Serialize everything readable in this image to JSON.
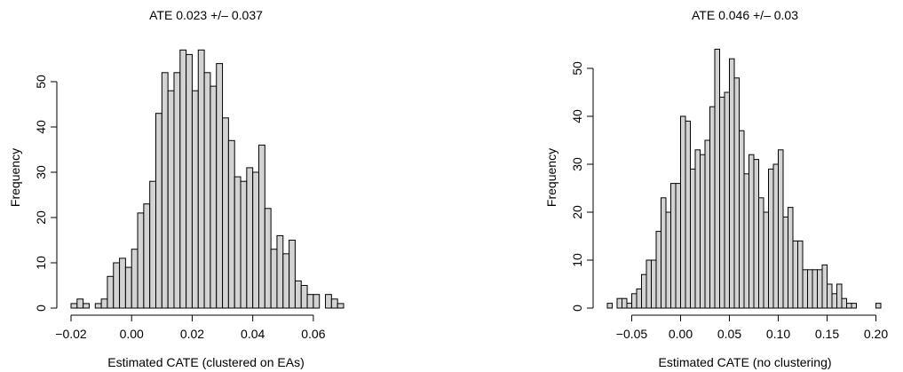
{
  "chart_data": [
    {
      "type": "bar",
      "title": "ATE 0.023 +/– 0.037",
      "xlabel": "Estimated CATE (clustered on EAs)",
      "ylabel": "Frequency",
      "bin_start": -0.02,
      "bin_width": 0.002,
      "values": [
        1,
        2,
        1,
        0,
        1,
        2,
        7,
        10,
        11,
        9,
        13,
        21,
        23,
        28,
        43,
        52,
        48,
        52,
        57,
        56,
        48,
        57,
        52,
        49,
        54,
        42,
        37,
        29,
        28,
        31,
        30,
        36,
        22,
        13,
        16,
        12,
        15,
        6,
        5,
        3,
        3,
        0,
        3,
        2,
        1
      ],
      "xlim": [
        -0.02,
        0.07
      ],
      "ylim": [
        0,
        57
      ],
      "xticks": [
        -0.02,
        0.0,
        0.02,
        0.04,
        0.06
      ],
      "xtick_labels": [
        "−0.02",
        "0.00",
        "0.02",
        "0.04",
        "0.06"
      ],
      "yticks": [
        0,
        10,
        20,
        30,
        40,
        50
      ],
      "ytick_labels": [
        "0",
        "10",
        "20",
        "30",
        "40",
        "50"
      ],
      "grid": false
    },
    {
      "type": "bar",
      "title": "ATE 0.046 +/– 0.03",
      "xlabel": "Estimated CATE (no clustering)",
      "ylabel": "Frequency",
      "bin_start": -0.075,
      "bin_width": 0.005,
      "values": [
        1,
        0,
        2,
        2,
        1,
        3,
        4,
        7,
        10,
        10,
        16,
        23,
        20,
        26,
        26,
        40,
        39,
        29,
        33,
        32,
        35,
        42,
        54,
        44,
        45,
        52,
        48,
        37,
        28,
        32,
        31,
        23,
        20,
        29,
        30,
        33,
        19,
        21,
        14,
        14,
        8,
        8,
        8,
        8,
        9,
        5,
        3,
        5,
        2,
        1,
        1,
        0,
        0,
        0,
        0,
        1
      ],
      "xlim": [
        -0.075,
        0.205
      ],
      "ylim": [
        0,
        54
      ],
      "xticks": [
        -0.05,
        0.0,
        0.05,
        0.1,
        0.15,
        0.2
      ],
      "xtick_labels": [
        "−0.05",
        "0.00",
        "0.05",
        "0.10",
        "0.15",
        "0.20"
      ],
      "yticks": [
        0,
        10,
        20,
        30,
        40,
        50
      ],
      "ytick_labels": [
        "0",
        "10",
        "20",
        "30",
        "40",
        "50"
      ],
      "grid": false
    }
  ]
}
